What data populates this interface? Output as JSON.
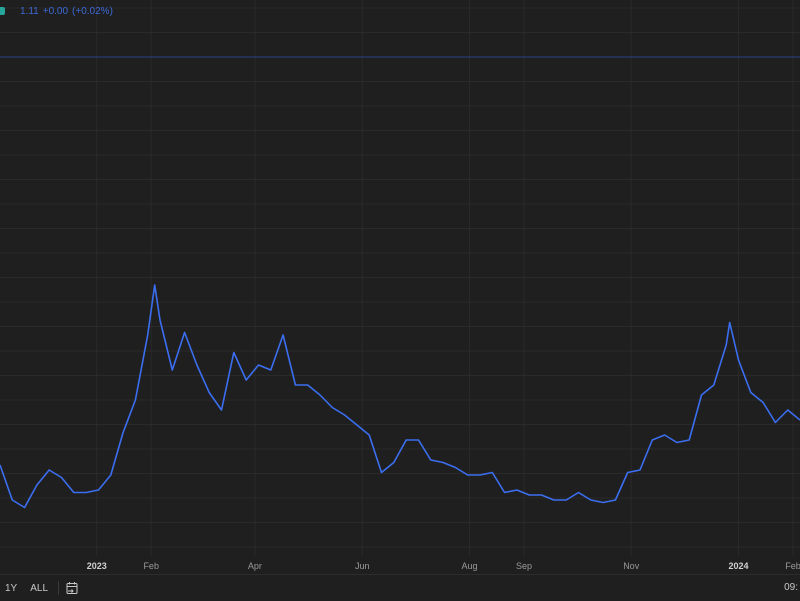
{
  "legend": {
    "price": "1.11",
    "change": "+0.00",
    "change_pct": "(+0.02%)",
    "dot_color": "#26a69a",
    "text_color": "#3c6ad8"
  },
  "footer": {
    "ranges": [
      "1Y",
      "ALL"
    ],
    "calendar_icon": "calendar-goto-icon",
    "time": "09:"
  },
  "colors": {
    "background": "#1f1f1f",
    "line": "#3b6ef0",
    "grid": "#2a2a2a",
    "price_line": "#2c4384"
  },
  "chart_data": {
    "type": "line",
    "title": "",
    "xlabel": "",
    "ylabel": "",
    "x_range": [
      "2022-11-07",
      "2024-02-05"
    ],
    "ylim": [
      0.39,
      2.79
    ],
    "grid": true,
    "x_ticks": [
      {
        "label": "2023",
        "date": "2023-01-01",
        "bold": true
      },
      {
        "label": "Feb",
        "date": "2023-02-01"
      },
      {
        "label": "Apr",
        "date": "2023-04-01"
      },
      {
        "label": "Jun",
        "date": "2023-06-01"
      },
      {
        "label": "Aug",
        "date": "2023-08-01"
      },
      {
        "label": "Sep",
        "date": "2023-09-01"
      },
      {
        "label": "Nov",
        "date": "2023-11-01"
      },
      {
        "label": "2024",
        "date": "2024-01-01",
        "bold": true
      },
      {
        "label": "Feb",
        "date": "2024-02-01"
      }
    ],
    "series": [
      {
        "x": [
          "2022-11-07",
          "2022-11-14",
          "2022-11-21",
          "2022-11-28",
          "2022-12-05",
          "2022-12-12",
          "2022-12-19",
          "2022-12-26",
          "2023-01-02",
          "2023-01-09",
          "2023-01-16",
          "2023-01-23",
          "2023-01-30",
          "2023-02-03",
          "2023-02-06",
          "2023-02-13",
          "2023-02-20",
          "2023-02-27",
          "2023-03-06",
          "2023-03-13",
          "2023-03-20",
          "2023-03-27",
          "2023-04-03",
          "2023-04-10",
          "2023-04-17",
          "2023-04-24",
          "2023-05-01",
          "2023-05-08",
          "2023-05-15",
          "2023-05-22",
          "2023-05-29",
          "2023-06-05",
          "2023-06-12",
          "2023-06-19",
          "2023-06-26",
          "2023-07-03",
          "2023-07-10",
          "2023-07-17",
          "2023-07-24",
          "2023-07-31",
          "2023-08-07",
          "2023-08-14",
          "2023-08-21",
          "2023-08-28",
          "2023-09-04",
          "2023-09-11",
          "2023-09-18",
          "2023-09-25",
          "2023-10-02",
          "2023-10-09",
          "2023-10-16",
          "2023-10-23",
          "2023-10-30",
          "2023-11-06",
          "2023-11-13",
          "2023-11-20",
          "2023-11-27",
          "2023-12-04",
          "2023-12-11",
          "2023-12-18",
          "2023-12-25",
          "2023-12-27",
          "2024-01-01",
          "2024-01-08",
          "2024-01-15",
          "2024-01-22",
          "2024-01-29",
          "2024-02-05"
        ],
        "y": [
          0.93,
          0.79,
          0.76,
          0.85,
          0.91,
          0.88,
          0.82,
          0.82,
          0.83,
          0.89,
          1.06,
          1.19,
          1.45,
          1.65,
          1.51,
          1.31,
          1.46,
          1.33,
          1.22,
          1.15,
          1.38,
          1.27,
          1.33,
          1.31,
          1.45,
          1.25,
          1.25,
          1.21,
          1.16,
          1.13,
          1.09,
          1.05,
          0.9,
          0.94,
          1.03,
          1.03,
          0.95,
          0.94,
          0.92,
          0.89,
          0.89,
          0.9,
          0.82,
          0.83,
          0.81,
          0.81,
          0.79,
          0.79,
          0.82,
          0.79,
          0.78,
          0.79,
          0.9,
          0.91,
          1.03,
          1.05,
          1.02,
          1.03,
          1.21,
          1.25,
          1.41,
          1.5,
          1.35,
          1.22,
          1.18,
          1.1,
          1.15,
          1.11
        ]
      }
    ]
  }
}
